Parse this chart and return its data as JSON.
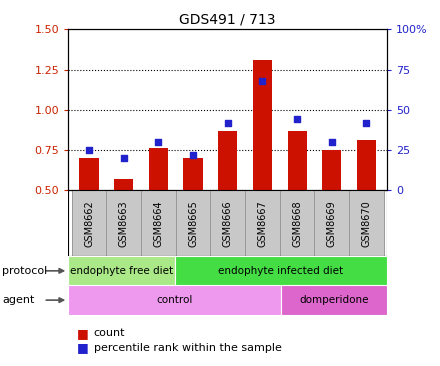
{
  "title": "GDS491 / 713",
  "samples": [
    "GSM8662",
    "GSM8663",
    "GSM8664",
    "GSM8665",
    "GSM8666",
    "GSM8667",
    "GSM8668",
    "GSM8669",
    "GSM8670"
  ],
  "count_values": [
    0.7,
    0.57,
    0.76,
    0.7,
    0.87,
    1.31,
    0.87,
    0.75,
    0.81
  ],
  "percentile_values": [
    25,
    20,
    30,
    22,
    42,
    68,
    44,
    30,
    42
  ],
  "ylim_left": [
    0.5,
    1.5
  ],
  "ylim_right": [
    0,
    100
  ],
  "yticks_left": [
    0.5,
    0.75,
    1.0,
    1.25,
    1.5
  ],
  "yticks_right": [
    0,
    25,
    50,
    75,
    100
  ],
  "ytick_labels_right": [
    "0",
    "25",
    "50",
    "75",
    "100%"
  ],
  "bar_color": "#cc1100",
  "dot_color": "#2222cc",
  "bar_width": 0.55,
  "protocol_groups": [
    {
      "label": "endophyte free diet",
      "start": 0,
      "end": 3,
      "color": "#aae888"
    },
    {
      "label": "endophyte infected diet",
      "start": 3,
      "end": 9,
      "color": "#44dd44"
    }
  ],
  "agent_groups": [
    {
      "label": "control",
      "start": 0,
      "end": 6,
      "color": "#ee99ee"
    },
    {
      "label": "domperidone",
      "start": 6,
      "end": 9,
      "color": "#dd66cc"
    }
  ],
  "left_axis_color": "#cc2200",
  "right_axis_color": "#2222cc",
  "sample_box_color": "#c8c8c8",
  "sample_box_edge": "#999999"
}
